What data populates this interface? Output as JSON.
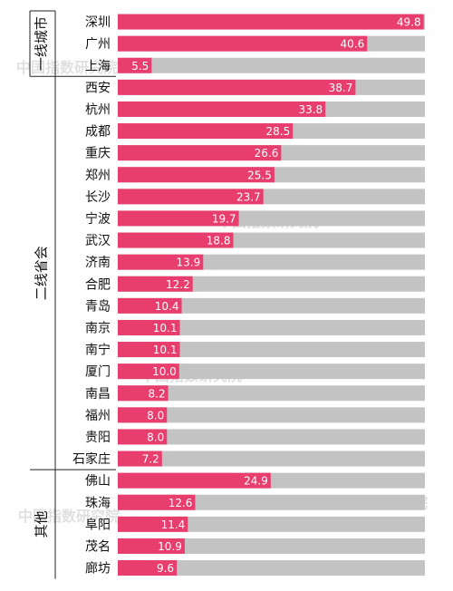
{
  "chart_data": {
    "type": "bar",
    "orientation": "horizontal",
    "xlim": [
      0,
      50
    ],
    "colors": {
      "bar": "#e83e6d",
      "track": "#c3c3c3"
    },
    "groups": [
      {
        "label": "一线城市",
        "start": 0,
        "end": 2
      },
      {
        "label": "二线省会",
        "start": 3,
        "end": 20
      },
      {
        "label": "其他",
        "start": 21,
        "end": 25
      }
    ],
    "categories": [
      "深圳",
      "广州",
      "上海",
      "西安",
      "杭州",
      "成都",
      "重庆",
      "郑州",
      "长沙",
      "宁波",
      "武汉",
      "济南",
      "合肥",
      "青岛",
      "南京",
      "南宁",
      "厦门",
      "南昌",
      "福州",
      "贵阳",
      "石家庄",
      "佛山",
      "珠海",
      "阜阳",
      "茂名",
      "廊坊"
    ],
    "values": [
      49.8,
      40.6,
      5.5,
      38.7,
      33.8,
      28.5,
      26.6,
      25.5,
      23.7,
      19.7,
      18.8,
      13.9,
      12.2,
      10.4,
      10.1,
      10.1,
      10.0,
      8.2,
      8.0,
      8.0,
      7.2,
      24.9,
      12.6,
      11.4,
      10.9,
      9.6
    ],
    "value_labels": [
      "49.8",
      "40.6",
      "5.5",
      "38.7",
      "33.8",
      "28.5",
      "26.6",
      "25.5",
      "23.7",
      "19.7",
      "18.8",
      "13.9",
      "12.2",
      "10.4",
      "10.1",
      "10.1",
      "10.0",
      "8.2",
      "8.0",
      "8.0",
      "7.2",
      "24.9",
      "12.6",
      "11.4",
      "10.9",
      "9.6"
    ]
  },
  "watermark": "中国指数研究院"
}
